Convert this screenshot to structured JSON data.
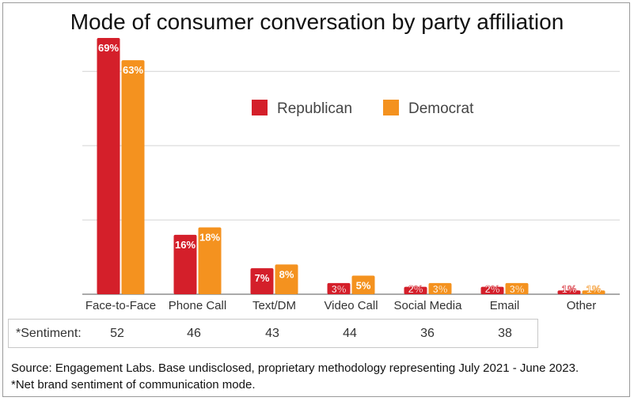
{
  "chart_data": {
    "type": "bar",
    "title": "Mode of consumer conversation by party affiliation",
    "categories": [
      "Face-to-Face",
      "Phone Call",
      "Text/DM",
      "Video Call",
      "Social Media",
      "Email",
      "Other"
    ],
    "series": [
      {
        "name": "Republican",
        "color": "#d41f2a",
        "values": [
          69,
          16,
          7,
          3,
          2,
          2,
          1
        ],
        "labels": [
          "69%",
          "16%",
          "7%",
          "3%",
          "2%",
          "2%",
          "1%"
        ]
      },
      {
        "name": "Democrat",
        "color": "#f4921f",
        "values": [
          63,
          18,
          8,
          5,
          3,
          3,
          1
        ],
        "labels": [
          "63%",
          "18%",
          "8%",
          "5%",
          "3%",
          "3%",
          "1%"
        ]
      }
    ],
    "ylim": [
      0,
      70
    ],
    "gridlines": [
      20,
      40,
      60
    ],
    "grid": true,
    "legend": "top-right-inside",
    "sentiment": {
      "label": "*Sentiment:",
      "values": [
        "52",
        "46",
        "43",
        "44",
        "36",
        "38"
      ]
    }
  },
  "footer": {
    "source": "Source: Engagement Labs. Base undisclosed, proprietary methodology representing July 2021 - June 2023.",
    "note": "*Net brand sentiment of communication mode."
  }
}
